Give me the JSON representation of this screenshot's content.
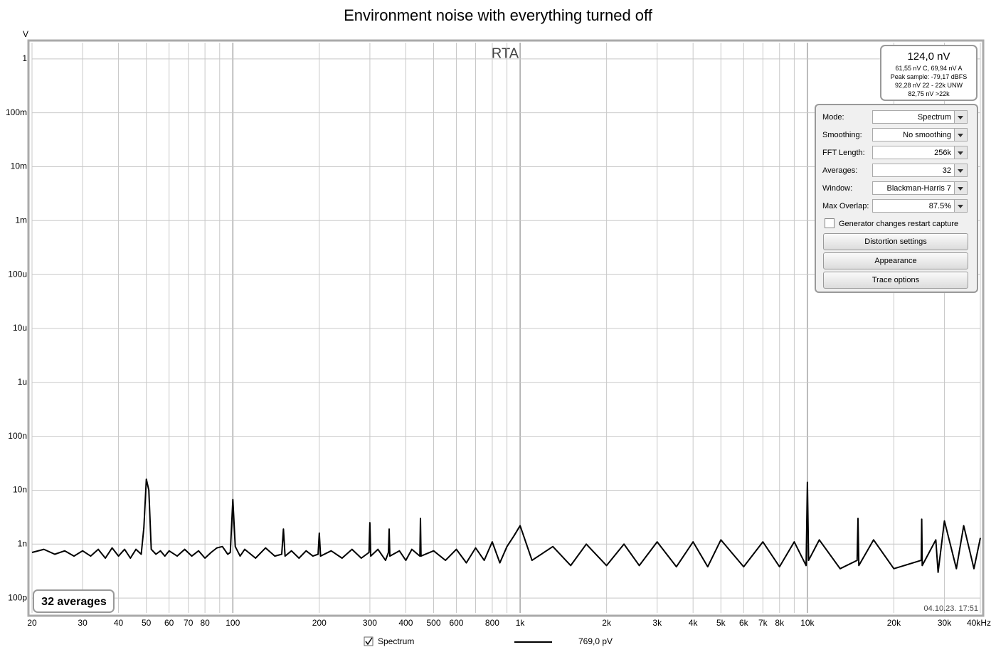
{
  "chart_data": {
    "type": "line",
    "title": "Environment noise with everything turned off",
    "plot_title": "RTA",
    "y_unit": "V",
    "x_scale": "log",
    "y_scale": "log",
    "grid": true,
    "xlim": [
      20,
      40000
    ],
    "ylim": [
      5.3e-11,
      2.0
    ],
    "xticks": [
      20,
      30,
      40,
      50,
      60,
      70,
      80,
      100,
      200,
      300,
      400,
      500,
      600,
      800,
      {
        "value": 1000,
        "label": "1k"
      },
      {
        "value": 2000,
        "label": "2k"
      },
      {
        "value": 3000,
        "label": "3k"
      },
      {
        "value": 4000,
        "label": "4k"
      },
      {
        "value": 5000,
        "label": "5k"
      },
      {
        "value": 6000,
        "label": "6k"
      },
      {
        "value": 7000,
        "label": "7k"
      },
      {
        "value": 8000,
        "label": "8k"
      },
      {
        "value": 10000,
        "label": "10k"
      },
      {
        "value": 20000,
        "label": "20k"
      },
      {
        "value": 30000,
        "label": "30k"
      },
      {
        "value": 40000,
        "label": "40kHz"
      }
    ],
    "xminorticks": [
      90,
      700,
      900,
      9000
    ],
    "yticks": [
      1,
      {
        "value": 0.1,
        "label": "100m"
      },
      {
        "value": 0.01,
        "label": "10m"
      },
      {
        "value": 0.001,
        "label": "1m"
      },
      {
        "value": 0.0001,
        "label": "100u"
      },
      {
        "value": 1e-05,
        "label": "10u"
      },
      {
        "value": 1e-06,
        "label": "1u"
      },
      {
        "value": 1e-07,
        "label": "100n"
      },
      {
        "value": 1e-08,
        "label": "10n"
      },
      {
        "value": 1e-09,
        "label": "1n"
      },
      {
        "value": 1e-10,
        "label": "100p"
      }
    ],
    "x": [
      20,
      22,
      24,
      26,
      28,
      30,
      32,
      34,
      36,
      38,
      40,
      42,
      44,
      46,
      48,
      49,
      50,
      51,
      52,
      54,
      56,
      58,
      60,
      64,
      68,
      72,
      76,
      80,
      84,
      88,
      92,
      96,
      98,
      100,
      102,
      106,
      110,
      120,
      130,
      140,
      148,
      150,
      152,
      160,
      170,
      180,
      190,
      198,
      200,
      202,
      220,
      240,
      260,
      280,
      298,
      300,
      302,
      320,
      340,
      348,
      350,
      352,
      380,
      400,
      420,
      448,
      450,
      452,
      500,
      550,
      600,
      650,
      700,
      750,
      800,
      850,
      900,
      950,
      1000,
      1100,
      1300,
      1500,
      1700,
      2000,
      2300,
      2600,
      3000,
      3500,
      4000,
      4500,
      5000,
      6000,
      7000,
      8000,
      9000,
      9900,
      10000,
      10100,
      11000,
      13000,
      14900,
      15000,
      15100,
      17000,
      20000,
      24900,
      25000,
      25100,
      28000,
      28500,
      30000,
      33000,
      35000,
      38000,
      40000
    ],
    "series": [
      {
        "name": "Spectrum",
        "color": "#000000",
        "legend_value": "769,0 pV",
        "values": [
          7e-10,
          8e-10,
          6.5e-10,
          7.5e-10,
          6e-10,
          7.5e-10,
          6e-10,
          8e-10,
          5.5e-10,
          8.5e-10,
          6e-10,
          8e-10,
          5.5e-10,
          8e-10,
          6.5e-10,
          2e-09,
          1.6e-08,
          1e-08,
          8e-10,
          6.5e-10,
          7.5e-10,
          6e-10,
          7.5e-10,
          6e-10,
          8e-10,
          6e-10,
          7.5e-10,
          5.5e-10,
          7e-10,
          8.5e-10,
          9e-10,
          6.5e-10,
          7e-10,
          6.7e-09,
          9e-10,
          6e-10,
          8e-10,
          5.5e-10,
          8.5e-10,
          6e-10,
          6.5e-10,
          1.9e-09,
          6e-10,
          7.5e-10,
          5.5e-10,
          7.5e-10,
          6e-10,
          6.5e-10,
          1.6e-09,
          6e-10,
          7.5e-10,
          5.5e-10,
          8e-10,
          5.5e-10,
          7e-10,
          2.5e-09,
          6e-10,
          8e-10,
          5e-10,
          7e-10,
          1.9e-09,
          6e-10,
          7.5e-10,
          5e-10,
          8e-10,
          6e-10,
          3e-09,
          6e-10,
          7.5e-10,
          5e-10,
          8e-10,
          4.5e-10,
          8.5e-10,
          5e-10,
          1.1e-09,
          4.5e-10,
          9e-10,
          1.4e-09,
          2.2e-09,
          5e-10,
          9e-10,
          4e-10,
          1e-09,
          4e-10,
          1e-09,
          4e-10,
          1.1e-09,
          3.8e-10,
          1.1e-09,
          3.8e-10,
          1.2e-09,
          3.8e-10,
          1.1e-09,
          3.8e-10,
          1.1e-09,
          4e-10,
          1.4e-08,
          5e-10,
          1.2e-09,
          3.5e-10,
          5e-10,
          3e-09,
          4e-10,
          1.2e-09,
          3.5e-10,
          5e-10,
          2.9e-09,
          4e-10,
          1.2e-09,
          3e-10,
          2.7e-09,
          3.5e-10,
          2.2e-09,
          3.5e-10,
          1.3e-09
        ]
      }
    ],
    "averages_label": "32 averages",
    "timestamp": "04.10.23. 17:51"
  },
  "info_box": {
    "main": "124,0 nV",
    "lines": [
      "61,55 nV C, 69,94 nV A",
      "Peak sample: -79,17 dBFS",
      "92,28 nV 22 - 22k UNW",
      "82,75 nV >22k"
    ]
  },
  "panel": {
    "rows": [
      {
        "label": "Mode:",
        "value": "Spectrum"
      },
      {
        "label": "Smoothing:",
        "value": "No  smoothing"
      },
      {
        "label": "FFT Length:",
        "value": "256k"
      },
      {
        "label": "Averages:",
        "value": "32"
      },
      {
        "label": "Window:",
        "value": "Blackman-Harris 7"
      },
      {
        "label": "Max Overlap:",
        "value": "87.5%"
      }
    ],
    "checkbox": "Generator changes restart capture",
    "buttons": [
      "Distortion settings",
      "Appearance",
      "Trace options"
    ]
  }
}
